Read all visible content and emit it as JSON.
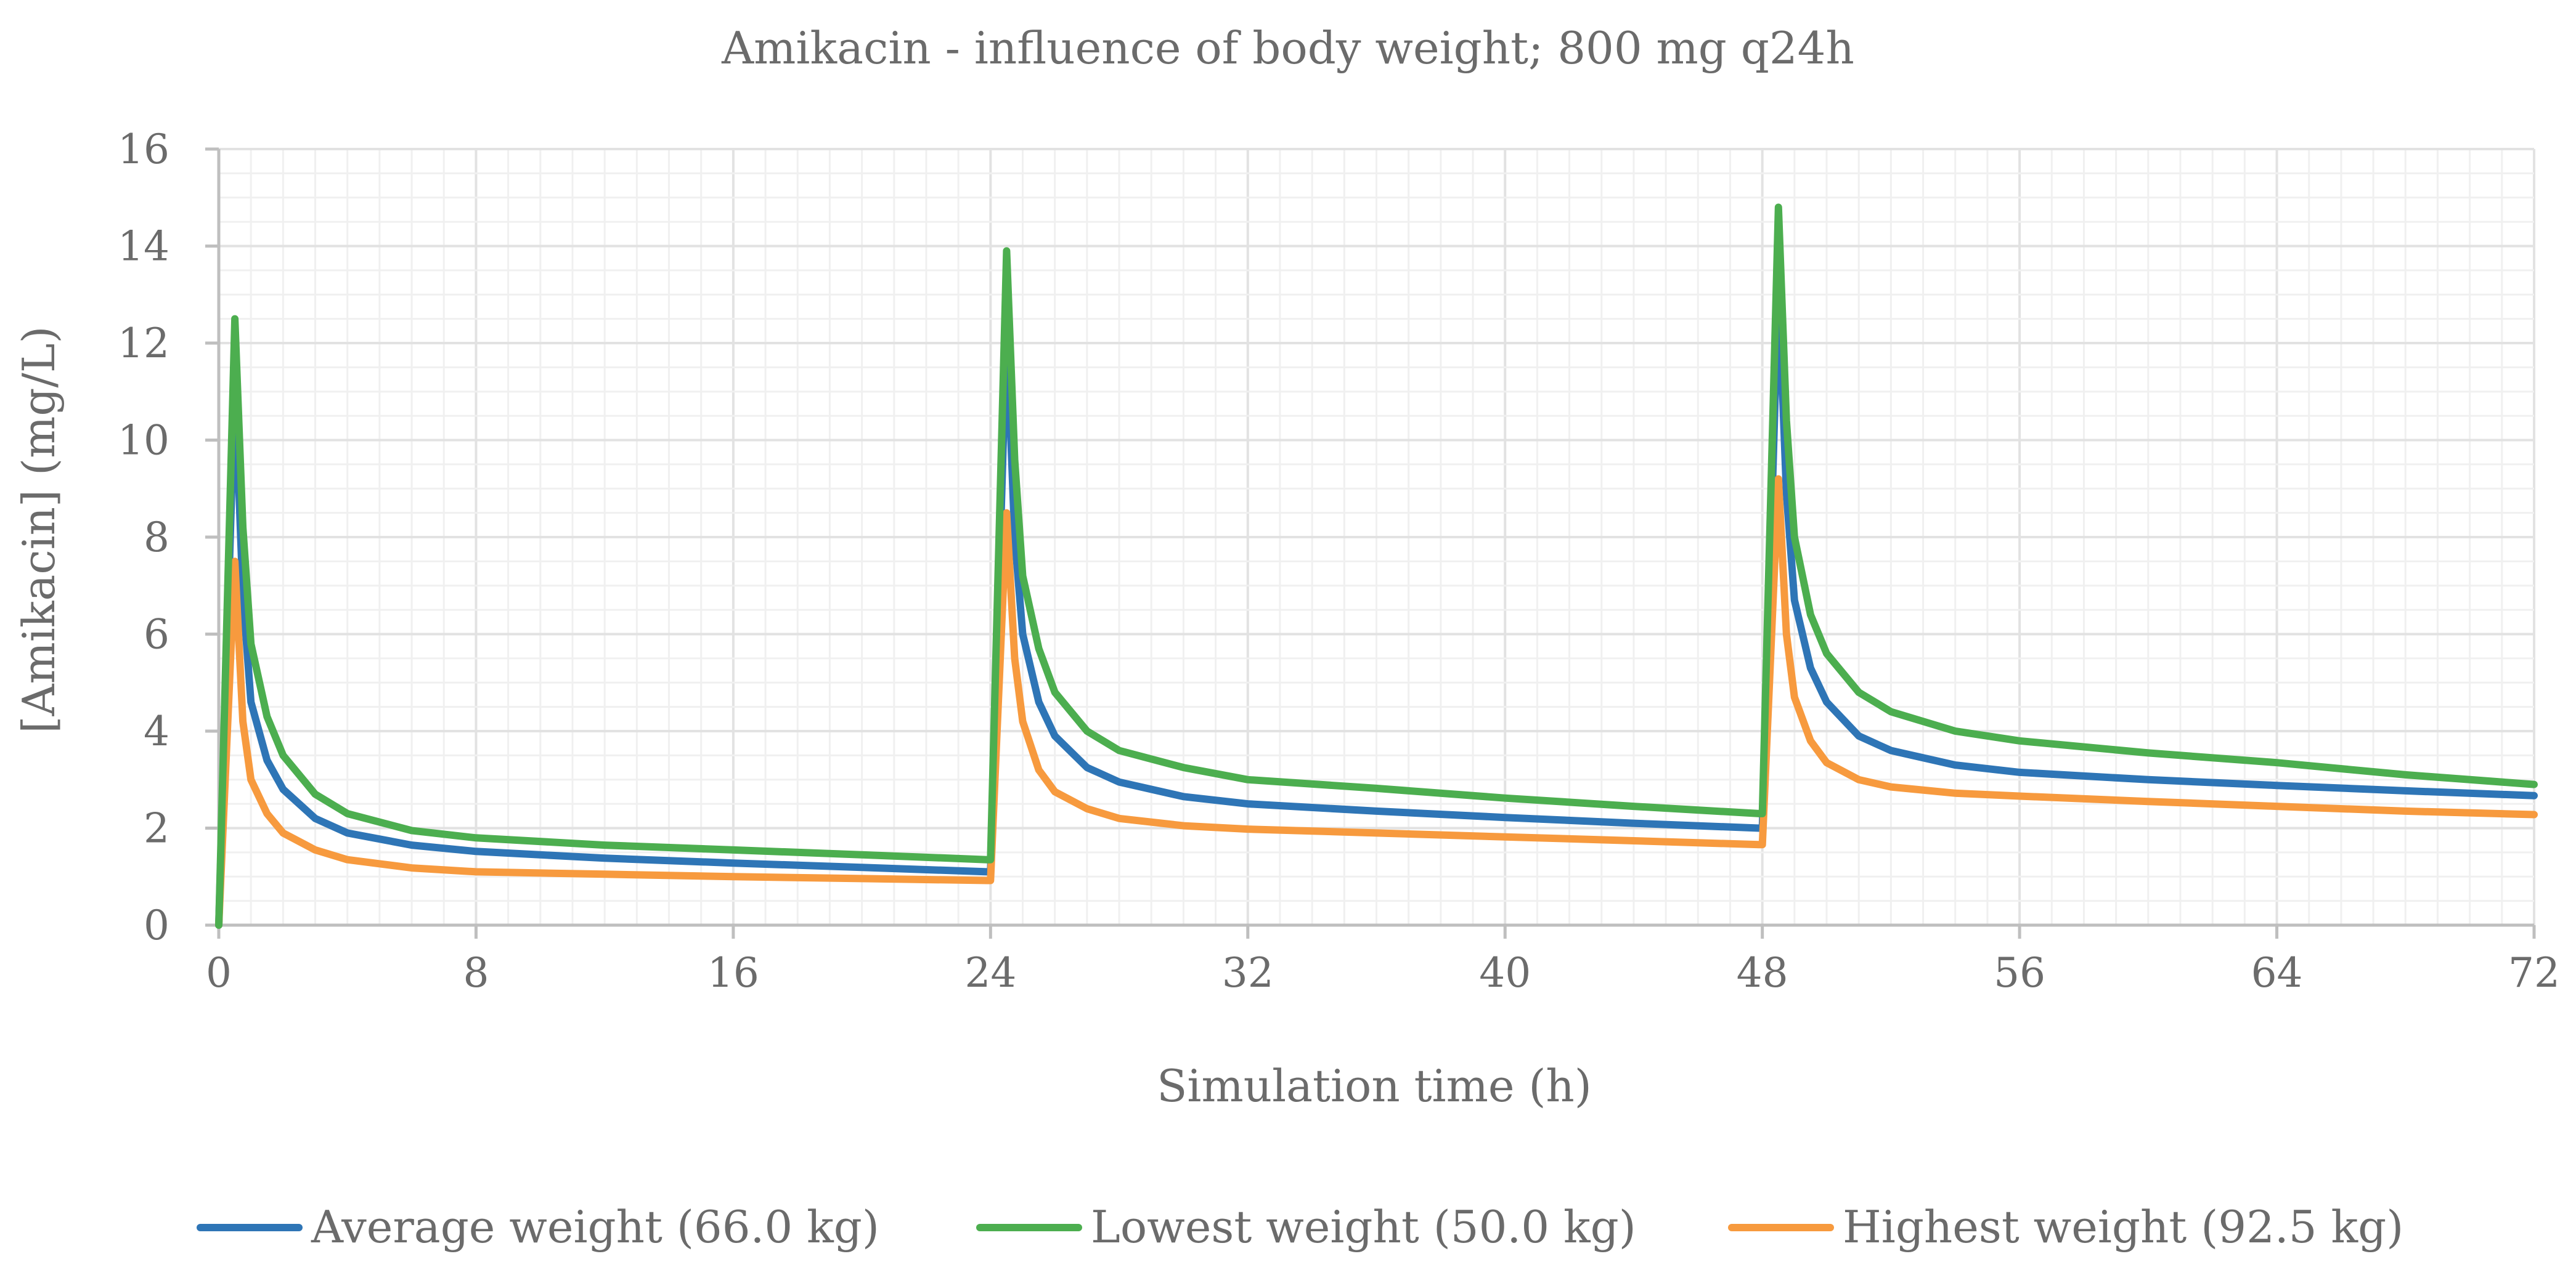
{
  "chart_data": {
    "type": "line",
    "title": "Amikacin - influence of body weight; 800 mg q24h",
    "xlabel": "Simulation time (h)",
    "ylabel": "[Amikacin] (mg/L)",
    "xlim": [
      0,
      72
    ],
    "ylim": [
      0,
      16
    ],
    "x_ticks": [
      0,
      8,
      16,
      24,
      32,
      40,
      48,
      56,
      64,
      72
    ],
    "y_ticks": [
      0,
      2,
      4,
      6,
      8,
      10,
      12,
      14,
      16
    ],
    "x_tick_labels": [
      "0",
      "8",
      "16",
      "24",
      "32",
      "40",
      "48",
      "56",
      "64",
      "72"
    ],
    "y_tick_labels": [
      "0",
      "2",
      "4",
      "6",
      "8",
      "10",
      "12",
      "14",
      "16"
    ],
    "grid": "major and minor",
    "legend_position": "bottom",
    "dose_times": [
      0,
      24,
      48
    ],
    "infusion_duration_h": 0.5,
    "series": [
      {
        "name": "Average weight (66.0 kg)",
        "color": "#2e75b6",
        "x": [
          0,
          0.5,
          0.75,
          1,
          1.5,
          2,
          3,
          4,
          6,
          8,
          12,
          16,
          20,
          23.9,
          24,
          24.5,
          24.75,
          25,
          25.5,
          26,
          27,
          28,
          30,
          32,
          36,
          40,
          44,
          47.9,
          48,
          48.5,
          48.75,
          49,
          49.5,
          50,
          51,
          52,
          54,
          56,
          60,
          64,
          68,
          72
        ],
        "y": [
          0,
          11.2,
          6.8,
          4.6,
          3.4,
          2.8,
          2.2,
          1.9,
          1.65,
          1.52,
          1.38,
          1.28,
          1.19,
          1.1,
          1.1,
          12.3,
          8.0,
          6.0,
          4.6,
          3.9,
          3.25,
          2.95,
          2.65,
          2.5,
          2.35,
          2.22,
          2.1,
          2.0,
          2.0,
          13.2,
          8.9,
          6.7,
          5.3,
          4.6,
          3.9,
          3.6,
          3.3,
          3.15,
          3.0,
          2.88,
          2.77,
          2.67
        ]
      },
      {
        "name": "Lowest weight (50.0 kg)",
        "color": "#4cae4f",
        "x": [
          0,
          0.5,
          0.75,
          1,
          1.5,
          2,
          3,
          4,
          6,
          8,
          12,
          16,
          20,
          23.9,
          24,
          24.5,
          24.75,
          25,
          25.5,
          26,
          27,
          28,
          30,
          32,
          36,
          40,
          44,
          47.9,
          48,
          48.5,
          48.75,
          49,
          49.5,
          50,
          51,
          52,
          54,
          56,
          60,
          64,
          68,
          72
        ],
        "y": [
          0,
          12.5,
          8.2,
          5.8,
          4.3,
          3.5,
          2.7,
          2.3,
          1.95,
          1.8,
          1.65,
          1.55,
          1.45,
          1.35,
          1.35,
          13.9,
          9.6,
          7.2,
          5.7,
          4.8,
          4.0,
          3.6,
          3.25,
          3.0,
          2.82,
          2.62,
          2.45,
          2.3,
          2.3,
          14.8,
          10.4,
          8.0,
          6.4,
          5.6,
          4.8,
          4.4,
          4.0,
          3.8,
          3.55,
          3.35,
          3.1,
          2.9
        ]
      },
      {
        "name": "Highest weight (92.5 kg)",
        "color": "#f79a3e",
        "x": [
          0,
          0.5,
          0.75,
          1,
          1.5,
          2,
          3,
          4,
          6,
          8,
          12,
          16,
          20,
          23.9,
          24,
          24.5,
          24.75,
          25,
          25.5,
          26,
          27,
          28,
          30,
          32,
          36,
          40,
          44,
          47.9,
          48,
          48.5,
          48.75,
          49,
          49.5,
          50,
          51,
          52,
          54,
          56,
          60,
          64,
          68,
          72
        ],
        "y": [
          0,
          7.5,
          4.2,
          3.0,
          2.3,
          1.9,
          1.55,
          1.35,
          1.18,
          1.1,
          1.05,
          1.0,
          0.96,
          0.92,
          0.92,
          8.5,
          5.5,
          4.2,
          3.2,
          2.75,
          2.4,
          2.2,
          2.05,
          1.98,
          1.9,
          1.82,
          1.74,
          1.66,
          1.66,
          9.2,
          6.0,
          4.7,
          3.8,
          3.35,
          3.0,
          2.85,
          2.72,
          2.66,
          2.55,
          2.45,
          2.35,
          2.28
        ]
      }
    ]
  }
}
